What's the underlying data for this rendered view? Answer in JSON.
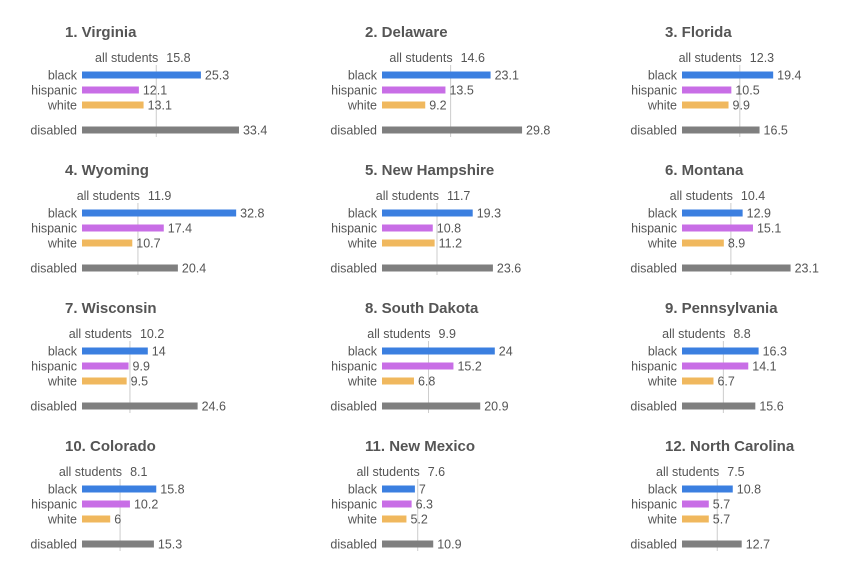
{
  "chart_data": {
    "type": "bar",
    "layout": "small-multiples",
    "all_students_label": "all students",
    "categories": [
      "black",
      "hispanic",
      "white",
      "disabled"
    ],
    "colors": {
      "black": "#3b7fe0",
      "hispanic": "#c86ee6",
      "white": "#f0b85e",
      "disabled": "#7f7f7f",
      "reference_line": "#cccccc",
      "text": "#555555"
    },
    "panels": [
      {
        "title": "1. Virginia",
        "all_students": "15.8",
        "values": [
          "25.3",
          "12.1",
          "13.1",
          "33.4"
        ]
      },
      {
        "title": "2. Delaware",
        "all_students": "14.6",
        "values": [
          "23.1",
          "13.5",
          "9.2",
          "29.8"
        ]
      },
      {
        "title": "3. Florida",
        "all_students": "12.3",
        "values": [
          "19.4",
          "10.5",
          "9.9",
          "16.5"
        ]
      },
      {
        "title": "4. Wyoming",
        "all_students": "11.9",
        "values": [
          "32.8",
          "17.4",
          "10.7",
          "20.4"
        ]
      },
      {
        "title": "5. New Hampshire",
        "all_students": "11.7",
        "values": [
          "19.3",
          "10.8",
          "11.2",
          "23.6"
        ]
      },
      {
        "title": "6. Montana",
        "all_students": "10.4",
        "values": [
          "12.9",
          "15.1",
          "8.9",
          "23.1"
        ]
      },
      {
        "title": "7. Wisconsin",
        "all_students": "10.2",
        "values": [
          "14",
          "9.9",
          "9.5",
          "24.6"
        ]
      },
      {
        "title": "8. South Dakota",
        "all_students": "9.9",
        "values": [
          "24",
          "15.2",
          "6.8",
          "20.9"
        ]
      },
      {
        "title": "9. Pennsylvania",
        "all_students": "8.8",
        "values": [
          "16.3",
          "14.1",
          "6.7",
          "15.6"
        ]
      },
      {
        "title": "10. Colorado",
        "all_students": "8.1",
        "values": [
          "15.8",
          "10.2",
          "6",
          "15.3"
        ]
      },
      {
        "title": "11. New Mexico",
        "all_students": "7.6",
        "values": [
          "7",
          "6.3",
          "5.2",
          "10.9"
        ]
      },
      {
        "title": "12. North Carolina",
        "all_students": "7.5",
        "values": [
          "10.8",
          "5.7",
          "5.7",
          "12.7"
        ]
      }
    ]
  }
}
